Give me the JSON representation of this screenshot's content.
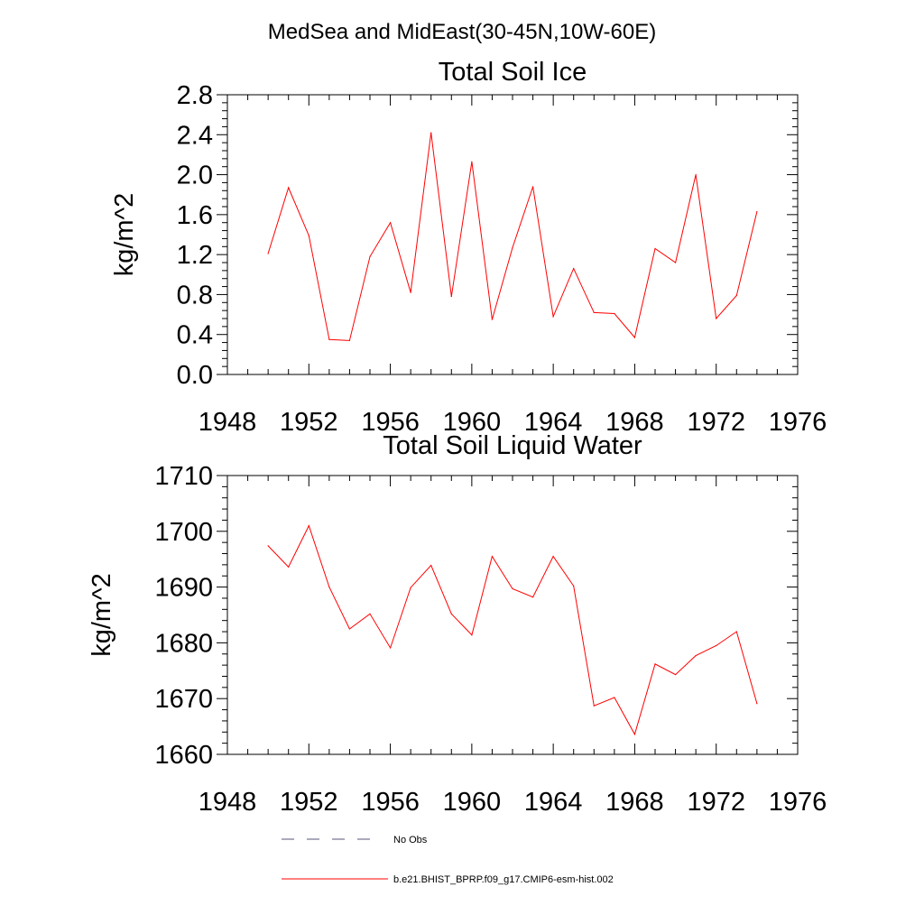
{
  "figure": {
    "suptitle": "MedSea and MidEast(30-45N,10W-60E)"
  },
  "chart_data": [
    {
      "type": "line",
      "title": "Total Soil Ice",
      "xlabel": "",
      "ylabel": "kg/m^2",
      "xlim": [
        1948,
        1976
      ],
      "ylim": [
        0.0,
        2.8
      ],
      "xticks": [
        1948,
        1952,
        1956,
        1960,
        1964,
        1968,
        1972,
        1976
      ],
      "xtick_labels": [
        "1948",
        "1952",
        "1956",
        "1960",
        "1964",
        "1968",
        "1972",
        "1976"
      ],
      "yticks": [
        0.0,
        0.4,
        0.8,
        1.2,
        1.6,
        2.0,
        2.4,
        2.8
      ],
      "ytick_labels": [
        "0.0",
        "0.4",
        "0.8",
        "1.2",
        "1.6",
        "2.0",
        "2.4",
        "2.8"
      ],
      "grid": false,
      "x": [
        1950,
        1951,
        1952,
        1953,
        1954,
        1955,
        1956,
        1957,
        1958,
        1959,
        1960,
        1961,
        1962,
        1963,
        1964,
        1965,
        1966,
        1967,
        1968,
        1969,
        1970,
        1971,
        1972,
        1973,
        1974
      ],
      "series": [
        {
          "name": "b.e21.BHIST_BPRP.f09_g17.CMIP6-esm-hist.002",
          "color": "#ff0000",
          "values": [
            1.21,
            1.87,
            1.39,
            0.35,
            0.34,
            1.18,
            1.52,
            0.82,
            2.42,
            0.78,
            2.13,
            0.55,
            1.27,
            1.88,
            0.58,
            1.06,
            0.62,
            0.61,
            0.37,
            1.26,
            1.12,
            2.0,
            0.56,
            0.79,
            1.63
          ]
        }
      ]
    },
    {
      "type": "line",
      "title": "Total Soil Liquid Water",
      "xlabel": "",
      "ylabel": "kg/m^2",
      "xlim": [
        1948,
        1976
      ],
      "ylim": [
        1660,
        1710
      ],
      "xticks": [
        1948,
        1952,
        1956,
        1960,
        1964,
        1968,
        1972,
        1976
      ],
      "xtick_labels": [
        "1948",
        "1952",
        "1956",
        "1960",
        "1964",
        "1968",
        "1972",
        "1976"
      ],
      "yticks": [
        1660,
        1670,
        1680,
        1690,
        1700,
        1710
      ],
      "ytick_labels": [
        "1660",
        "1670",
        "1680",
        "1690",
        "1700",
        "1710"
      ],
      "grid": false,
      "x": [
        1950,
        1951,
        1952,
        1953,
        1954,
        1955,
        1956,
        1957,
        1958,
        1959,
        1960,
        1961,
        1962,
        1963,
        1964,
        1965,
        1966,
        1967,
        1968,
        1969,
        1970,
        1971,
        1972,
        1973,
        1974
      ],
      "series": [
        {
          "name": "b.e21.BHIST_BPRP.f09_g17.CMIP6-esm-hist.002",
          "color": "#ff0000",
          "values": [
            1697.4,
            1693.6,
            1701.0,
            1690.0,
            1682.5,
            1685.2,
            1679.1,
            1689.9,
            1693.9,
            1685.2,
            1681.4,
            1695.5,
            1689.7,
            1688.2,
            1695.5,
            1690.2,
            1668.7,
            1670.2,
            1663.6,
            1676.2,
            1674.3,
            1677.7,
            1679.5,
            1682.0,
            1669.1
          ]
        }
      ]
    }
  ],
  "legend": {
    "placement": "bottom",
    "entries": [
      {
        "label": "No Obs",
        "style": "dashed",
        "color": "#555577"
      },
      {
        "label": "b.e21.BHIST_BPRP.f09_g17.CMIP6-esm-hist.002",
        "style": "solid",
        "color": "#ff0000"
      }
    ]
  }
}
